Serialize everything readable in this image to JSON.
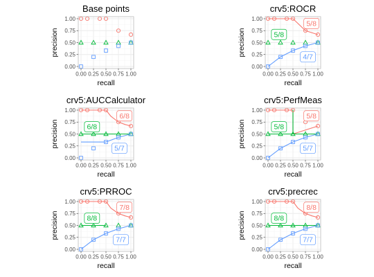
{
  "figure": {
    "colors": {
      "red": "#f8766d",
      "green": "#00ba38",
      "blue": "#619cff",
      "grid_major": "#ebebeb",
      "grid_minor": "#f5f5f5",
      "panel_border": "#bdbdbd",
      "tick_text": "#4d4d4d"
    }
  },
  "chart_data": [
    {
      "type": "scatter",
      "title": "Base points",
      "xlabel": "recall",
      "ylabel": "precision",
      "xlim": [
        0,
        1
      ],
      "ylim": [
        0,
        1
      ],
      "x_ticks": [
        "0.00",
        "0.25",
        "0.50",
        "0.75",
        "1.00"
      ],
      "y_ticks": [
        "0.00",
        "0.25",
        "0.50",
        "0.75",
        "1.00"
      ],
      "grid": true,
      "series": [
        {
          "color": "red",
          "marker": "circle",
          "points": [
            [
              0,
              1
            ],
            [
              0.125,
              1
            ],
            [
              0.375,
              1
            ],
            [
              0.5,
              1
            ],
            [
              0.75,
              0.75
            ],
            [
              1,
              0.667
            ]
          ],
          "curve": [],
          "labels": []
        },
        {
          "color": "green",
          "marker": "triangle",
          "points": [
            [
              0,
              0.5
            ],
            [
              0.25,
              0.5
            ],
            [
              0.5,
              0.5
            ],
            [
              0.75,
              0.5
            ],
            [
              1,
              0.5
            ]
          ],
          "curve": [],
          "labels": []
        },
        {
          "color": "blue",
          "marker": "square",
          "points": [
            [
              0,
              0
            ],
            [
              0.25,
              0.2
            ],
            [
              0.5,
              0.333
            ],
            [
              0.75,
              0.429
            ],
            [
              1,
              0.5
            ]
          ],
          "curve": [],
          "labels": []
        }
      ]
    },
    {
      "type": "line",
      "title": "crv5:ROCR",
      "xlabel": "recall",
      "ylabel": "precision",
      "xlim": [
        0,
        1
      ],
      "ylim": [
        0,
        1
      ],
      "x_ticks": [
        "0.00",
        "0.25",
        "0.50",
        "0.75",
        "1.00"
      ],
      "y_ticks": [
        "0.00",
        "0.25",
        "0.50",
        "0.75",
        "1.00"
      ],
      "grid": true,
      "series": [
        {
          "color": "red",
          "marker": "circle",
          "points": [
            [
              0,
              1
            ],
            [
              0.125,
              1
            ],
            [
              0.375,
              1
            ],
            [
              0.5,
              1
            ],
            [
              0.75,
              0.75
            ],
            [
              1,
              0.667
            ]
          ],
          "curve": [
            [
              0,
              1
            ],
            [
              0.125,
              1
            ],
            [
              0.375,
              1
            ],
            [
              0.5,
              1
            ],
            [
              0.75,
              0.75
            ],
            [
              1,
              0.667
            ]
          ],
          "labels": [
            {
              "text": "5/8",
              "x": 0.87,
              "y": 0.9
            }
          ]
        },
        {
          "color": "green",
          "marker": "triangle",
          "points": [
            [
              0,
              0.5
            ],
            [
              0.25,
              0.5
            ],
            [
              0.5,
              0.5
            ],
            [
              0.75,
              0.5
            ],
            [
              1,
              0.5
            ]
          ],
          "curve": [],
          "labels": [
            {
              "text": "5/8",
              "x": 0.22,
              "y": 0.67
            }
          ]
        },
        {
          "color": "blue",
          "marker": "square",
          "points": [
            [
              0,
              0
            ],
            [
              0.25,
              0.2
            ],
            [
              0.5,
              0.333
            ],
            [
              0.75,
              0.429
            ],
            [
              1,
              0.5
            ]
          ],
          "curve": [
            [
              0,
              0
            ],
            [
              0.25,
              0.2
            ],
            [
              0.5,
              0.333
            ],
            [
              0.75,
              0.429
            ],
            [
              1,
              0.5
            ]
          ],
          "labels": [
            {
              "text": "4/7",
              "x": 0.8,
              "y": 0.2
            }
          ]
        }
      ]
    },
    {
      "type": "line",
      "title": "crv5:AUCCalculator",
      "xlabel": "recall",
      "ylabel": "precision",
      "xlim": [
        0,
        1
      ],
      "ylim": [
        0,
        1
      ],
      "x_ticks": [
        "0.00",
        "0.25",
        "0.50",
        "0.75",
        "1.00"
      ],
      "y_ticks": [
        "0.00",
        "0.25",
        "0.50",
        "0.75",
        "1.00"
      ],
      "grid": true,
      "series": [
        {
          "color": "red",
          "marker": "circle",
          "points": [
            [
              0,
              1
            ],
            [
              0.125,
              1
            ],
            [
              0.375,
              1
            ],
            [
              0.5,
              1
            ],
            [
              0.75,
              0.75
            ],
            [
              1,
              0.667
            ]
          ],
          "curve": [
            [
              0,
              1
            ],
            [
              0.5,
              1
            ],
            [
              0.6,
              0.87
            ],
            [
              0.75,
              0.75
            ],
            [
              0.88,
              0.7
            ],
            [
              1,
              0.667
            ]
          ],
          "labels": [
            {
              "text": "6/8",
              "x": 0.87,
              "y": 0.88
            }
          ]
        },
        {
          "color": "green",
          "marker": "triangle",
          "points": [
            [
              0,
              0.5
            ],
            [
              0.25,
              0.5
            ],
            [
              0.5,
              0.5
            ],
            [
              0.75,
              0.5
            ],
            [
              1,
              0.5
            ]
          ],
          "curve": [
            [
              0,
              0.5
            ],
            [
              1,
              0.5
            ]
          ],
          "labels": [
            {
              "text": "6/8",
              "x": 0.22,
              "y": 0.65
            }
          ]
        },
        {
          "color": "blue",
          "marker": "square",
          "points": [
            [
              0,
              0
            ],
            [
              0.25,
              0.2
            ],
            [
              0.5,
              0.333
            ],
            [
              0.75,
              0.429
            ],
            [
              1,
              0.5
            ]
          ],
          "curve": [
            [
              0,
              0.333
            ],
            [
              0.5,
              0.333
            ],
            [
              0.75,
              0.429
            ],
            [
              1,
              0.5
            ]
          ],
          "labels": [
            {
              "text": "5/7",
              "x": 0.77,
              "y": 0.2
            }
          ]
        }
      ]
    },
    {
      "type": "line",
      "title": "crv5:PerfMeas",
      "xlabel": "recall",
      "ylabel": "precision",
      "xlim": [
        0,
        1
      ],
      "ylim": [
        0,
        1
      ],
      "x_ticks": [
        "0.00",
        "0.25",
        "0.50",
        "0.75",
        "1.00"
      ],
      "y_ticks": [
        "0.00",
        "0.25",
        "0.50",
        "0.75",
        "1.00"
      ],
      "grid": true,
      "series": [
        {
          "color": "red",
          "marker": "circle",
          "points": [
            [
              0,
              1
            ],
            [
              0.125,
              1
            ],
            [
              0.375,
              1
            ],
            [
              0.5,
              1
            ],
            [
              0.75,
              0.75
            ],
            [
              1,
              0.667
            ]
          ],
          "curve": [
            [
              0,
              1
            ],
            [
              0.5,
              1
            ],
            [
              0.5,
              0.5
            ],
            [
              1,
              0.667
            ]
          ],
          "labels": [
            {
              "text": "5/8",
              "x": 0.87,
              "y": 0.88
            }
          ]
        },
        {
          "color": "green",
          "marker": "triangle",
          "points": [
            [
              0,
              0.5
            ],
            [
              0.25,
              0.5
            ],
            [
              0.5,
              0.5
            ],
            [
              0.75,
              0.5
            ],
            [
              1,
              0.5
            ]
          ],
          "curve": [
            [
              0,
              0.5
            ],
            [
              0.5,
              0.5
            ],
            [
              0.5,
              1
            ],
            [
              0.5,
              0.5
            ],
            [
              1,
              0.5
            ]
          ],
          "labels": [
            {
              "text": "5/8",
              "x": 0.22,
              "y": 0.65
            }
          ]
        },
        {
          "color": "blue",
          "marker": "square",
          "points": [
            [
              0,
              0
            ],
            [
              0.25,
              0.2
            ],
            [
              0.5,
              0.333
            ],
            [
              0.75,
              0.429
            ],
            [
              1,
              0.5
            ]
          ],
          "curve": [
            [
              0,
              0
            ],
            [
              0.25,
              0.2
            ],
            [
              0.5,
              0.333
            ],
            [
              0.75,
              0.429
            ],
            [
              1,
              0.5
            ]
          ],
          "labels": [
            {
              "text": "5/7",
              "x": 0.8,
              "y": 0.2
            }
          ]
        }
      ]
    },
    {
      "type": "line",
      "title": "crv5:PRROC",
      "xlabel": "recall",
      "ylabel": "precision",
      "xlim": [
        0,
        1
      ],
      "ylim": [
        0,
        1
      ],
      "x_ticks": [
        "0.00",
        "0.25",
        "0.50",
        "0.75",
        "1.00"
      ],
      "y_ticks": [
        "0.00",
        "0.25",
        "0.50",
        "0.75",
        "1.00"
      ],
      "grid": true,
      "series": [
        {
          "color": "red",
          "marker": "circle",
          "points": [
            [
              0,
              1
            ],
            [
              0.125,
              1
            ],
            [
              0.375,
              1
            ],
            [
              0.5,
              1
            ],
            [
              0.75,
              0.75
            ],
            [
              1,
              0.667
            ]
          ],
          "curve": [
            [
              0,
              1
            ],
            [
              0.5,
              1
            ],
            [
              0.6,
              0.86
            ],
            [
              0.75,
              0.75
            ],
            [
              0.88,
              0.7
            ],
            [
              1,
              0.667
            ]
          ],
          "labels": [
            {
              "text": "7/8",
              "x": 0.87,
              "y": 0.88
            }
          ]
        },
        {
          "color": "green",
          "marker": "triangle",
          "points": [
            [
              0,
              0.5
            ],
            [
              0.25,
              0.5
            ],
            [
              0.5,
              0.5
            ],
            [
              0.75,
              0.5
            ],
            [
              1,
              0.5
            ]
          ],
          "curve": [
            [
              0,
              0.5
            ],
            [
              0.5,
              0.5
            ]
          ],
          "labels": [
            {
              "text": "8/8",
              "x": 0.22,
              "y": 0.65
            }
          ]
        },
        {
          "color": "blue",
          "marker": "square",
          "points": [
            [
              0,
              0
            ],
            [
              0.25,
              0.2
            ],
            [
              0.5,
              0.333
            ],
            [
              0.75,
              0.429
            ],
            [
              1,
              0.5
            ]
          ],
          "curve": [
            [
              0,
              0
            ],
            [
              0.25,
              0.2
            ],
            [
              0.5,
              0.333
            ],
            [
              0.75,
              0.429
            ],
            [
              1,
              0.5
            ]
          ],
          "labels": [
            {
              "text": "7/7",
              "x": 0.8,
              "y": 0.2
            }
          ]
        }
      ]
    },
    {
      "type": "line",
      "title": "crv5:precrec",
      "xlabel": "recall",
      "ylabel": "precision",
      "xlim": [
        0,
        1
      ],
      "ylim": [
        0,
        1
      ],
      "x_ticks": [
        "0.00",
        "0.25",
        "0.50",
        "0.75",
        "1.00"
      ],
      "y_ticks": [
        "0.00",
        "0.25",
        "0.50",
        "0.75",
        "1.00"
      ],
      "grid": true,
      "series": [
        {
          "color": "red",
          "marker": "circle",
          "points": [
            [
              0,
              1
            ],
            [
              0.125,
              1
            ],
            [
              0.375,
              1
            ],
            [
              0.5,
              1
            ],
            [
              0.75,
              0.75
            ],
            [
              1,
              0.667
            ]
          ],
          "curve": [
            [
              0,
              1
            ],
            [
              0.5,
              1
            ],
            [
              0.6,
              0.86
            ],
            [
              0.75,
              0.75
            ],
            [
              0.88,
              0.7
            ],
            [
              1,
              0.667
            ]
          ],
          "labels": [
            {
              "text": "8/8",
              "x": 0.87,
              "y": 0.88
            }
          ]
        },
        {
          "color": "green",
          "marker": "triangle",
          "points": [
            [
              0,
              0.5
            ],
            [
              0.25,
              0.5
            ],
            [
              0.5,
              0.5
            ],
            [
              0.75,
              0.5
            ],
            [
              1,
              0.5
            ]
          ],
          "curve": [
            [
              0,
              0.5
            ],
            [
              1,
              0.5
            ]
          ],
          "labels": [
            {
              "text": "8/8",
              "x": 0.22,
              "y": 0.65
            }
          ]
        },
        {
          "color": "blue",
          "marker": "square",
          "points": [
            [
              0,
              0
            ],
            [
              0.25,
              0.2
            ],
            [
              0.5,
              0.333
            ],
            [
              0.75,
              0.429
            ],
            [
              1,
              0.5
            ]
          ],
          "curve": [
            [
              0,
              0
            ],
            [
              0.25,
              0.2
            ],
            [
              0.5,
              0.333
            ],
            [
              0.75,
              0.429
            ],
            [
              1,
              0.5
            ]
          ],
          "labels": [
            {
              "text": "7/7",
              "x": 0.8,
              "y": 0.2
            }
          ]
        }
      ]
    }
  ]
}
